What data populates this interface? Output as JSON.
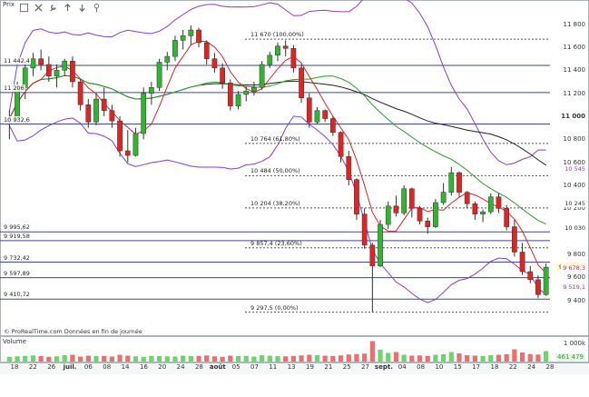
{
  "toolbar": {
    "price_label": "Prix",
    "buttons": [
      {
        "name": "checkbox-icon"
      },
      {
        "name": "close-icon"
      },
      {
        "name": "wrench-icon"
      },
      {
        "name": "up-arrow-icon"
      },
      {
        "name": "down-arrow-icon"
      },
      {
        "name": "pin-icon"
      }
    ]
  },
  "credit": "© ProRealTime.com  Données en fin de journée",
  "volume_label": "Volume",
  "volume_axis": [
    "1 000k",
    "461 479"
  ],
  "price_axis": [
    "11 800",
    "11 600",
    "11 400",
    "11 200",
    "11 000",
    "10 800",
    "10 600",
    "10 400",
    "10 200",
    "9 800",
    "9 600",
    "9 400"
  ],
  "price_tags": [
    {
      "text": "10 545",
      "color": "#8c3bc7",
      "bg": "#ffffff"
    },
    {
      "text": "10 245",
      "color": "#333333",
      "bg": "#ffffff"
    },
    {
      "text": "10 032",
      "color": "#2a9b2a",
      "bg": "#ffffff"
    },
    {
      "text": "10 030",
      "color": "#222222",
      "bg": "#ffffff"
    },
    {
      "text": "9 688,53",
      "color": "#222222",
      "bg": "#fff7b3"
    },
    {
      "text": "9 678,3",
      "color": "#c62828",
      "bg": "#ffffff"
    },
    {
      "text": "9 519,1",
      "color": "#8c3bc7",
      "bg": "#ffffff"
    }
  ],
  "levels_left": [
    "11 442,4",
    "11 206",
    "10 932,6",
    "9 995,62",
    "9 919,58",
    "9 732,42",
    "9 597,89",
    "9 410,72"
  ],
  "fib_levels": [
    "11 670 (100,00%)",
    "10 764 (61,80%)",
    "10 484 (50,00%)",
    "10 204 (38,20%)",
    "9 857,4 (23,60%)",
    "9 297,5 (0,00%)"
  ],
  "x_ticks": [
    "18",
    "22",
    "26",
    "juil.",
    "06",
    "08",
    "14",
    "16",
    "20",
    "24",
    "28",
    "août",
    "05",
    "07",
    "11",
    "13",
    "19",
    "21",
    "25",
    "27",
    "sept.",
    "04",
    "08",
    "10",
    "15",
    "17",
    "18",
    "22",
    "24",
    "28"
  ],
  "colors": {
    "up": "#2fb52f",
    "down": "#e02424",
    "sma20": "#e02424",
    "sma50": "#2a9b2a",
    "sma100": "#222222",
    "boll": "#8c3bc7",
    "grid": "#3a4a8a"
  },
  "chart_data": {
    "type": "candlestick",
    "ylim": [
      9200,
      11900
    ],
    "candles": [
      [
        10950,
        11050,
        10800,
        10980
      ],
      [
        10980,
        11300,
        10950,
        11250
      ],
      [
        11250,
        11450,
        11150,
        11420
      ],
      [
        11420,
        11550,
        11350,
        11500
      ],
      [
        11500,
        11580,
        11400,
        11450
      ],
      [
        11450,
        11520,
        11300,
        11350
      ],
      [
        11350,
        11450,
        11250,
        11400
      ],
      [
        11400,
        11500,
        11350,
        11480
      ],
      [
        11480,
        11520,
        11250,
        11300
      ],
      [
        11300,
        11320,
        11050,
        11100
      ],
      [
        11100,
        11150,
        10900,
        10950
      ],
      [
        10950,
        11200,
        10920,
        11150
      ],
      [
        11150,
        11250,
        11000,
        11050
      ],
      [
        11050,
        11100,
        10900,
        10960
      ],
      [
        10960,
        11000,
        10650,
        10700
      ],
      [
        10700,
        10880,
        10600,
        10660
      ],
      [
        10660,
        10900,
        10650,
        10850
      ],
      [
        10850,
        11250,
        10800,
        11200
      ],
      [
        11200,
        11300,
        11100,
        11250
      ],
      [
        11250,
        11500,
        11220,
        11470
      ],
      [
        11470,
        11560,
        11400,
        11520
      ],
      [
        11520,
        11700,
        11480,
        11660
      ],
      [
        11660,
        11750,
        11580,
        11700
      ],
      [
        11700,
        11790,
        11620,
        11750
      ],
      [
        11750,
        11770,
        11600,
        11640
      ],
      [
        11640,
        11660,
        11450,
        11500
      ],
      [
        11500,
        11550,
        11380,
        11420
      ],
      [
        11420,
        11460,
        11240,
        11290
      ],
      [
        11290,
        11320,
        11050,
        11090
      ],
      [
        11090,
        11220,
        11060,
        11190
      ],
      [
        11190,
        11260,
        11130,
        11220
      ],
      [
        11220,
        11300,
        11180,
        11250
      ],
      [
        11250,
        11480,
        11230,
        11450
      ],
      [
        11450,
        11560,
        11420,
        11530
      ],
      [
        11530,
        11640,
        11480,
        11610
      ],
      [
        11610,
        11660,
        11520,
        11590
      ],
      [
        11590,
        11620,
        11380,
        11420
      ],
      [
        11420,
        11450,
        11120,
        11160
      ],
      [
        11160,
        11200,
        10900,
        10950
      ],
      [
        10950,
        11080,
        10930,
        11050
      ],
      [
        11050,
        11060,
        10950,
        10980
      ],
      [
        10980,
        11000,
        10830,
        10860
      ],
      [
        10860,
        10870,
        10600,
        10650
      ],
      [
        10650,
        10700,
        10400,
        10450
      ],
      [
        10450,
        10460,
        10100,
        10150
      ],
      [
        10150,
        10200,
        9850,
        9880
      ],
      [
        9880,
        9900,
        9300,
        9700
      ],
      [
        9700,
        10100,
        9690,
        10060
      ],
      [
        10060,
        10260,
        10020,
        10220
      ],
      [
        10220,
        10310,
        10130,
        10160
      ],
      [
        10160,
        10400,
        10140,
        10370
      ],
      [
        10370,
        10380,
        10120,
        10200
      ],
      [
        10200,
        10220,
        10060,
        10090
      ],
      [
        10090,
        10120,
        9980,
        10040
      ],
      [
        10040,
        10280,
        10030,
        10250
      ],
      [
        10250,
        10420,
        10230,
        10340
      ],
      [
        10340,
        10560,
        10310,
        10510
      ],
      [
        10510,
        10520,
        10300,
        10340
      ],
      [
        10340,
        10350,
        10200,
        10240
      ],
      [
        10240,
        10260,
        10100,
        10150
      ],
      [
        10150,
        10190,
        10080,
        10170
      ],
      [
        10170,
        10330,
        10150,
        10300
      ],
      [
        10300,
        10330,
        10160,
        10200
      ],
      [
        10200,
        10230,
        10010,
        10040
      ],
      [
        10040,
        10100,
        9780,
        9820
      ],
      [
        9820,
        9900,
        9620,
        9650
      ],
      [
        9650,
        9700,
        9550,
        9580
      ],
      [
        9580,
        9620,
        9420,
        9450
      ],
      [
        9450,
        9720,
        9440,
        9688.53
      ]
    ],
    "volume": [
      210,
      230,
      250,
      270,
      240,
      210,
      230,
      280,
      300,
      220,
      260,
      240,
      250,
      220,
      300,
      260,
      230,
      210,
      250,
      240,
      230,
      220,
      260,
      240,
      250,
      270,
      230,
      210,
      260,
      240,
      250,
      220,
      280,
      260,
      240,
      230,
      250,
      270,
      300,
      280,
      260,
      250,
      270,
      310,
      330,
      350,
      900,
      520,
      380,
      420,
      300,
      260,
      270,
      250,
      300,
      320,
      420,
      360,
      280,
      260,
      250,
      280,
      300,
      320,
      540,
      400,
      330,
      310,
      461
    ]
  }
}
